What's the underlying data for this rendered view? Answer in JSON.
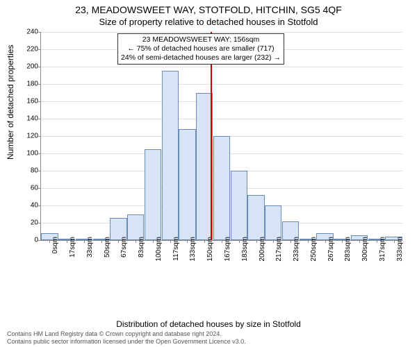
{
  "titles": {
    "address": "23, MEADOWSWEET WAY, STOTFOLD, HITCHIN, SG5 4QF",
    "subtitle": "Size of property relative to detached houses in Stotfold"
  },
  "axes": {
    "ylabel": "Number of detached properties",
    "xlabel": "Distribution of detached houses by size in Stotfold",
    "ymax": 240,
    "ytick_step": 20,
    "label_fontsize": 12,
    "tick_fontsize": 10
  },
  "annotation": {
    "line1": "23 MEADOWSWEET WAY: 156sqm",
    "line2": "← 75% of detached houses are smaller (717)",
    "line3": "24% of semi-detached houses are larger (232) →"
  },
  "marker": {
    "position_sqm": 156,
    "color": "#cc0000"
  },
  "chart": {
    "type": "histogram",
    "bar_fill": "#d6e4f5",
    "bar_border": "#6a8bb5",
    "grid_color": "#e0e0e0",
    "axis_color": "#888888",
    "background_color": "#ffffff",
    "x_categories": [
      "0sqm",
      "17sqm",
      "33sqm",
      "50sqm",
      "67sqm",
      "83sqm",
      "100sqm",
      "117sqm",
      "133sqm",
      "150sqm",
      "167sqm",
      "183sqm",
      "200sqm",
      "217sqm",
      "233sqm",
      "250sqm",
      "267sqm",
      "283sqm",
      "300sqm",
      "317sqm",
      "333sqm"
    ],
    "values": [
      8,
      0,
      2,
      2,
      26,
      30,
      105,
      195,
      128,
      170,
      120,
      80,
      52,
      40,
      22,
      2,
      8,
      2,
      6,
      2,
      4
    ]
  },
  "footer": {
    "line1": "Contains HM Land Registry data © Crown copyright and database right 2024.",
    "line2": "Contains public sector information licensed under the Open Government Licence v3.0."
  }
}
